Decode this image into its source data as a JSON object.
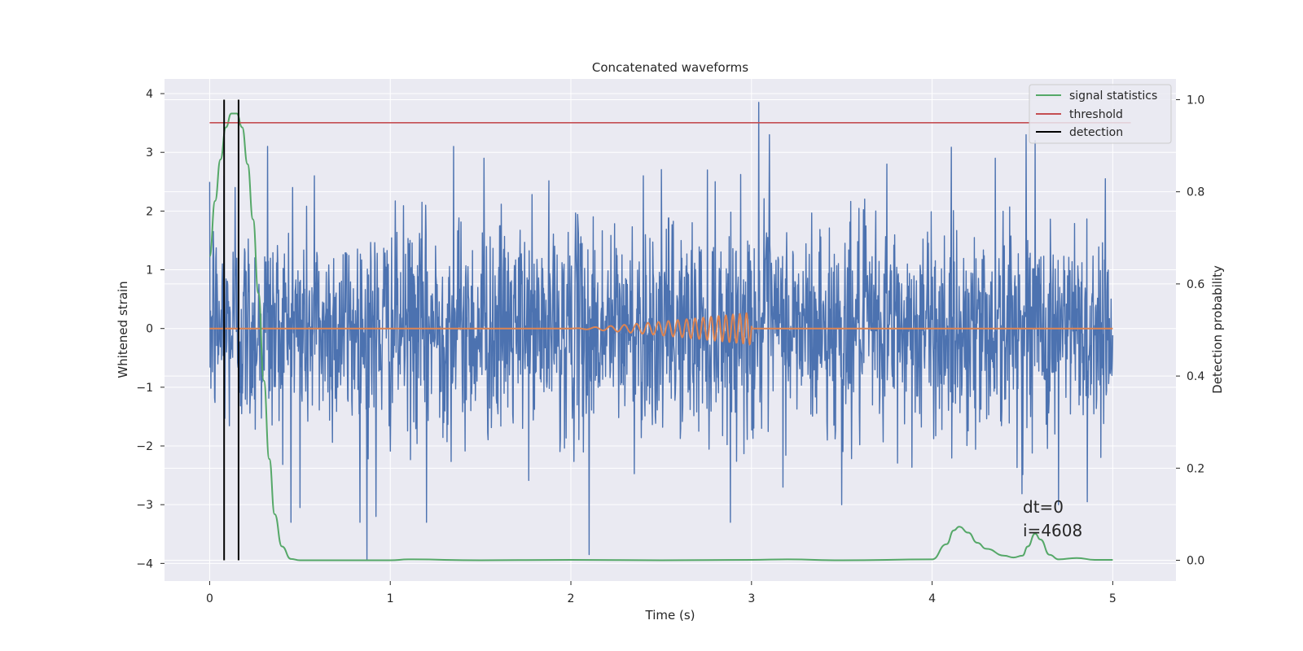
{
  "chart_data": {
    "type": "line",
    "title": "Concatenated waveforms",
    "xlabel": "Time (s)",
    "ylabel": "Whitened strain",
    "y2label": "Detection probability",
    "xlim": [
      -0.25,
      5.35
    ],
    "ylim": [
      -4.3,
      4.25
    ],
    "y2lim": [
      -0.045,
      1.045
    ],
    "xticks": [
      "0",
      "1",
      "2",
      "3",
      "4",
      "5"
    ],
    "yticks": [
      "4",
      "3",
      "2",
      "1",
      "0",
      "−1",
      "−2",
      "−3",
      "−4"
    ],
    "y2ticks": [
      "1.0",
      "0.8",
      "0.6",
      "0.4",
      "0.2",
      "0.0"
    ],
    "grid": true,
    "legend_position": "top-right",
    "legend": [
      "signal statistics",
      "threshold",
      "detection"
    ],
    "colors": {
      "strain": "#4c72b0",
      "template": "#dd8452",
      "signal_statistics": "#55a868",
      "threshold": "#c44e52",
      "detection": "#000000",
      "background": "#eaeaf2",
      "grid": "#ffffff"
    },
    "strain": {
      "x_range": [
        0,
        5
      ],
      "noise_sigma": 0.9,
      "spikes": [
        {
          "x": 0.02,
          "y": 1.65
        },
        {
          "x": 0.08,
          "y": 2.6
        },
        {
          "x": 0.14,
          "y": 2.4
        },
        {
          "x": 0.32,
          "y": 3.1
        },
        {
          "x": 0.46,
          "y": 2.4
        },
        {
          "x": 0.5,
          "y": -3.05
        },
        {
          "x": 0.58,
          "y": 2.6
        },
        {
          "x": 0.87,
          "y": -3.95
        },
        {
          "x": 0.92,
          "y": -3.2
        },
        {
          "x": 1.2,
          "y": -3.3
        },
        {
          "x": 1.35,
          "y": 3.1
        },
        {
          "x": 1.52,
          "y": 2.9
        },
        {
          "x": 2.1,
          "y": -3.85
        },
        {
          "x": 2.4,
          "y": 2.6
        },
        {
          "x": 2.8,
          "y": 2.5
        },
        {
          "x": 3.04,
          "y": 3.85
        },
        {
          "x": 3.1,
          "y": 3.3
        },
        {
          "x": 3.75,
          "y": 2.8
        },
        {
          "x": 3.5,
          "y": -3.0
        },
        {
          "x": 4.35,
          "y": 2.9
        },
        {
          "x": 4.52,
          "y": 3.3
        },
        {
          "x": 4.57,
          "y": 3.2
        },
        {
          "x": 4.7,
          "y": -3.0
        },
        {
          "x": 4.86,
          "y": -2.95
        },
        {
          "x": 4.96,
          "y": 2.55
        }
      ]
    },
    "template": {
      "x_start": 2.0,
      "x_end": 3.0,
      "max_amplitude": 0.27,
      "f_start_hz": 8,
      "f_end_hz": 28
    },
    "signal_statistics": {
      "x": [
        0,
        0.03,
        0.06,
        0.09,
        0.12,
        0.15,
        0.18,
        0.21,
        0.24,
        0.27,
        0.3,
        0.33,
        0.36,
        0.4,
        0.45,
        0.5,
        1.0,
        1.1,
        1.5,
        2.0,
        2.5,
        3.0,
        3.2,
        3.5,
        4.0,
        4.08,
        4.12,
        4.15,
        4.2,
        4.25,
        4.3,
        4.4,
        4.45,
        4.5,
        4.53,
        4.57,
        4.6,
        4.65,
        4.7,
        4.8,
        4.9,
        5.0
      ],
      "y": [
        0.66,
        0.78,
        0.87,
        0.94,
        0.97,
        0.97,
        0.94,
        0.86,
        0.74,
        0.58,
        0.39,
        0.22,
        0.1,
        0.03,
        0.003,
        0.0,
        0.0,
        0.002,
        0.0,
        0.001,
        0.0,
        0.001,
        0.002,
        0.0,
        0.002,
        0.035,
        0.065,
        0.073,
        0.06,
        0.038,
        0.025,
        0.01,
        0.006,
        0.01,
        0.03,
        0.058,
        0.045,
        0.012,
        0.002,
        0.005,
        0.001,
        0.001
      ]
    },
    "threshold": {
      "y": 0.95,
      "x_range": [
        0,
        5.1
      ]
    },
    "detection": {
      "x": [
        0.08,
        0.16
      ],
      "y_range": [
        0.0,
        1.0
      ]
    },
    "annotations": [
      "dt=0",
      "i=4608"
    ]
  }
}
